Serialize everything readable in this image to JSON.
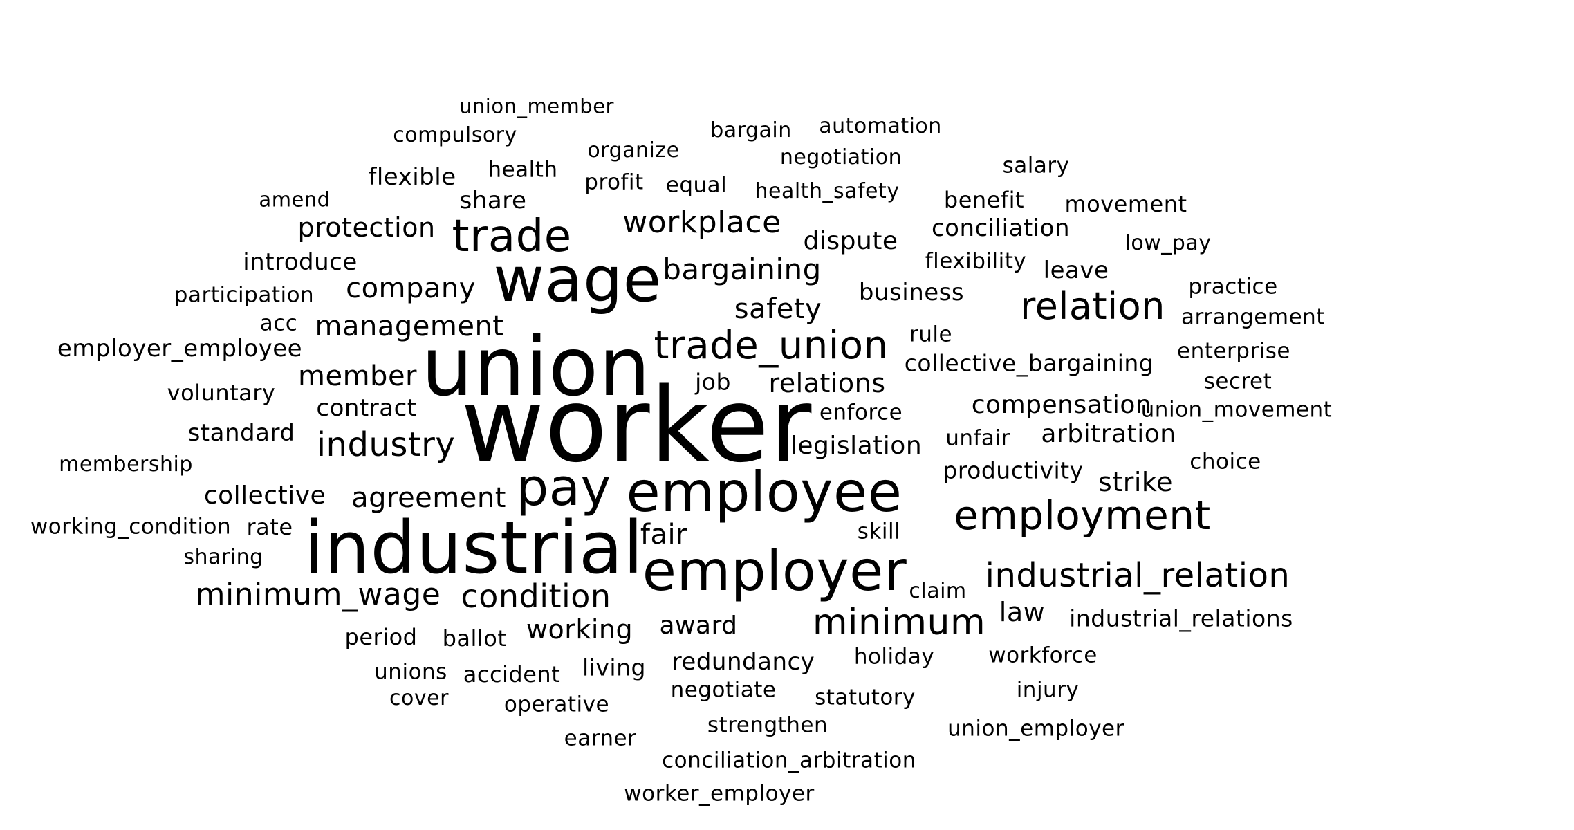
{
  "text_color": "#000000",
  "background": "#ffffff",
  "words": [
    "worker",
    "union",
    "industrial",
    "employee",
    "employer",
    "wage",
    "pay",
    "trade",
    "trade_union",
    "relation",
    "employment",
    "minimum",
    "industrial_relation",
    "condition",
    "minimum_wage",
    "industry",
    "workplace",
    "bargaining",
    "agreement",
    "relations",
    "member",
    "safety",
    "management",
    "compensation",
    "company",
    "working",
    "arbitration",
    "strike",
    "protection",
    "fair",
    "collective",
    "legislation",
    "dispute",
    "contract",
    "introduce",
    "award",
    "conciliation",
    "standard",
    "collective_bargaining",
    "industrial_relations",
    "law",
    "redundancy",
    "business",
    "productivity",
    "employer_employee",
    "voluntary",
    "union_movement",
    "share",
    "flexible",
    "health",
    "negotiation",
    "salary",
    "movement",
    "leave",
    "benefit",
    "participation",
    "living",
    "accident",
    "workforce",
    "unions",
    "negotiate",
    "holiday",
    "enforce",
    "job",
    "statutory",
    "union_employer",
    "strengthen",
    "conciliation_arbitration",
    "worker_employer",
    "operative",
    "earner",
    "cover",
    "injury",
    "rule",
    "flexibility",
    "unfair",
    "enterprise",
    "arrangement",
    "practice",
    "low_pay",
    "secret",
    "choice",
    "skill",
    "claim",
    "period",
    "ballot",
    "working_condition",
    "rate",
    "sharing",
    "membership",
    "acc",
    "amend",
    "compulsory",
    "union_member",
    "organize",
    "profit",
    "equal",
    "bargain",
    "automation",
    "health_safety"
  ]
}
